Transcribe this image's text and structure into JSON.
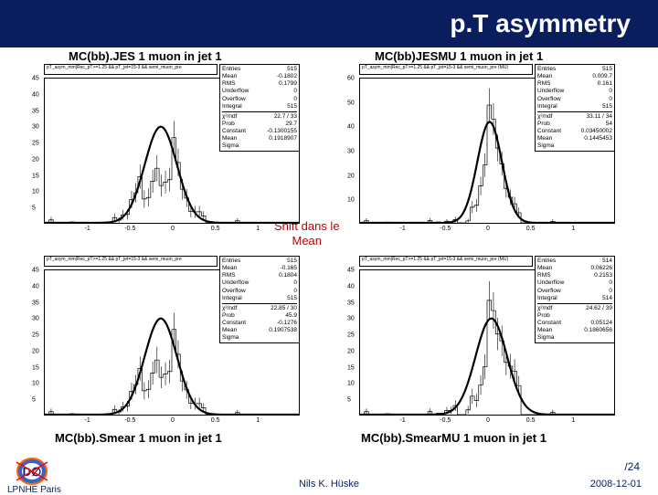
{
  "header": {
    "title": "p.T asymmetry"
  },
  "labels": {
    "tl": "MC(bb).JES 1 muon in jet 1",
    "tr": "MC(bb)JESMU 1 muon in jet 1",
    "bl": "MC(bb).Smear 1 muon in jet 1",
    "br": "MC(bb).SmearMU 1 muon in jet 1",
    "shift_l1": "Shift dans le",
    "shift_l2": "Mean"
  },
  "footer": {
    "lpnhe": "LPNHE Paris",
    "author": "Nils K. Hüske",
    "page": "/24",
    "date": "2008-12-01"
  },
  "charts": {
    "tl": {
      "subtitle": "pT_asym_mm|Rec_pT>=1.25 && pT_jet=15-3 && semi_muon_pre",
      "xlim": [
        -1.5,
        1.5
      ],
      "xticks": [
        -1,
        -0.5,
        0,
        0.5,
        1
      ],
      "ylim": [
        0,
        45
      ],
      "yticks": [
        5,
        10,
        15,
        20,
        25,
        30,
        35,
        40,
        45
      ],
      "stats": {
        "Entries": "515",
        "Mean": "-0.1802",
        "RMS": "0.1799",
        "Underflow": "0",
        "Overflow": "0",
        "Integral": "515",
        "chi2ndf": "22.7 / 33",
        "Prob": "29.7",
        "Constant": "-0.1300155",
        "Mean_fit": "0.1918907",
        "Sigma": ""
      },
      "curve_color": "#000000",
      "fill_color": "#ffffff",
      "peak_x": -0.13,
      "sigma": 0.19,
      "amp": 30
    },
    "tr": {
      "subtitle": "pT_asym_mm|Rec_pT>=1.25 && pT_jet=15-3 && semi_muon_pre (MU)",
      "xlim": [
        -1.5,
        1.5
      ],
      "xticks": [
        -1,
        -0.5,
        0,
        0.5,
        1
      ],
      "ylim": [
        0,
        60
      ],
      "yticks": [
        10,
        20,
        30,
        40,
        50,
        60
      ],
      "stats": {
        "Entries": "515",
        "Mean": "0.009.7",
        "RMS": "0.161",
        "Underflow": "0",
        "Overflow": "0",
        "Integral": "515",
        "chi2ndf": "33.11 / 34",
        "Prob": "54",
        "Constant": "0.03450002",
        "Mean_fit": "0.1445453",
        "Sigma": ""
      },
      "curve_color": "#000000",
      "fill_color": "#ffffff",
      "peak_x": 0.03,
      "sigma": 0.145,
      "amp": 42
    },
    "bl": {
      "subtitle": "pT_asym_mm|Rec_pT>=1.25 && pT_jet=15-3 && semi_muon_pre",
      "xlim": [
        -1.5,
        1.5
      ],
      "xticks": [
        -1,
        -0.5,
        0,
        0.5,
        1
      ],
      "ylim": [
        0,
        45
      ],
      "yticks": [
        5,
        10,
        15,
        20,
        25,
        30,
        35,
        40,
        45
      ],
      "stats": {
        "Entries": "515",
        "Mean": "-0.165",
        "RMS": "0.1804",
        "Underflow": "0",
        "Overflow": "0",
        "Integral": "515",
        "chi2ndf": "22.85 / 30",
        "Prob": "45.9",
        "Constant": "-0.1276",
        "Mean_fit": "0.1907538",
        "Sigma": ""
      },
      "curve_color": "#000000",
      "fill_color": "#ffffff",
      "peak_x": -0.13,
      "sigma": 0.19,
      "amp": 30
    },
    "br": {
      "subtitle": "pT_asym_mm|Rec_pT>=1.25 && pT_jet=15-3 && semi_muon_pre (MU)",
      "xlim": [
        -1.5,
        1.5
      ],
      "xticks": [
        -1,
        -0.5,
        0,
        0.5,
        1
      ],
      "ylim": [
        0,
        45
      ],
      "yticks": [
        5,
        10,
        15,
        20,
        25,
        30,
        35,
        40,
        45
      ],
      "stats": {
        "Entries": "514",
        "Mean": "0.06226",
        "RMS": "0.2153",
        "Underflow": "0",
        "Overflow": "0",
        "Integral": "514",
        "chi2ndf": "24.62 / 39",
        "Prob": "",
        "Constant": "0.05124",
        "Mean_fit": "0.1860656",
        "Sigma": ""
      },
      "curve_color": "#000000",
      "fill_color": "#ffffff",
      "peak_x": 0.05,
      "sigma": 0.186,
      "amp": 30
    }
  },
  "style": {
    "header_bg": "#0a1e5e",
    "header_fg": "#ffffff",
    "accent": "#c00000",
    "logo_blue": "#3366cc",
    "logo_orange": "#ff6600"
  }
}
